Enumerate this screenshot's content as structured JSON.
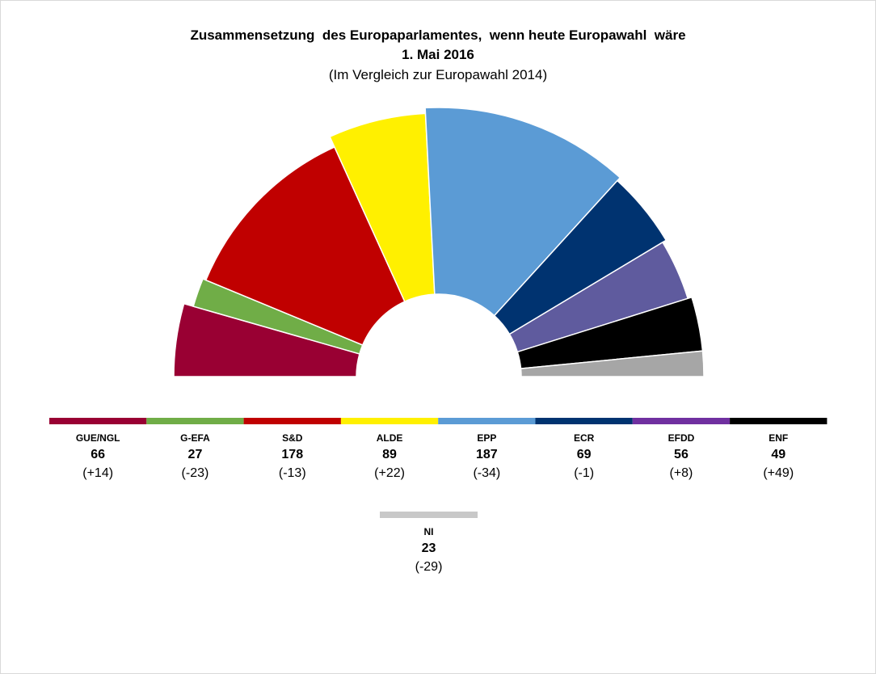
{
  "chart_data": {
    "type": "pie",
    "shape": "semicircle-parliament",
    "title": "Zusammensetzung  des Europaparlamentes,  wenn heute Europawahl  wäre",
    "date": "1. Mai 2016",
    "subtitle": "(Im Vergleich zur Europawahl 2014)",
    "categories": [
      "GUE/NGL",
      "G-EFA",
      "S&D",
      "ALDE",
      "EPP",
      "ECR",
      "EFDD",
      "ENF",
      "NI"
    ],
    "values": [
      66,
      27,
      178,
      89,
      187,
      69,
      56,
      49,
      23
    ],
    "changes": [
      "(+14)",
      "(-23)",
      "(-13)",
      "(+22)",
      "(-34)",
      "(-1)",
      "(+8)",
      "(+49)",
      "(-29)"
    ],
    "colors": {
      "GUE/NGL": "#990033",
      "G-EFA": "#70AD47",
      "S&D": "#C00000",
      "ALDE": "#FFF000",
      "EPP": "#5B9BD5",
      "ECR": "#003370",
      "EFDD_arc": "#5F5B9E",
      "EFDD_legend": "#7030A0",
      "ENF": "#000000",
      "NI": "#A6A6A6",
      "NI_legend": "#C8C8C8"
    }
  }
}
